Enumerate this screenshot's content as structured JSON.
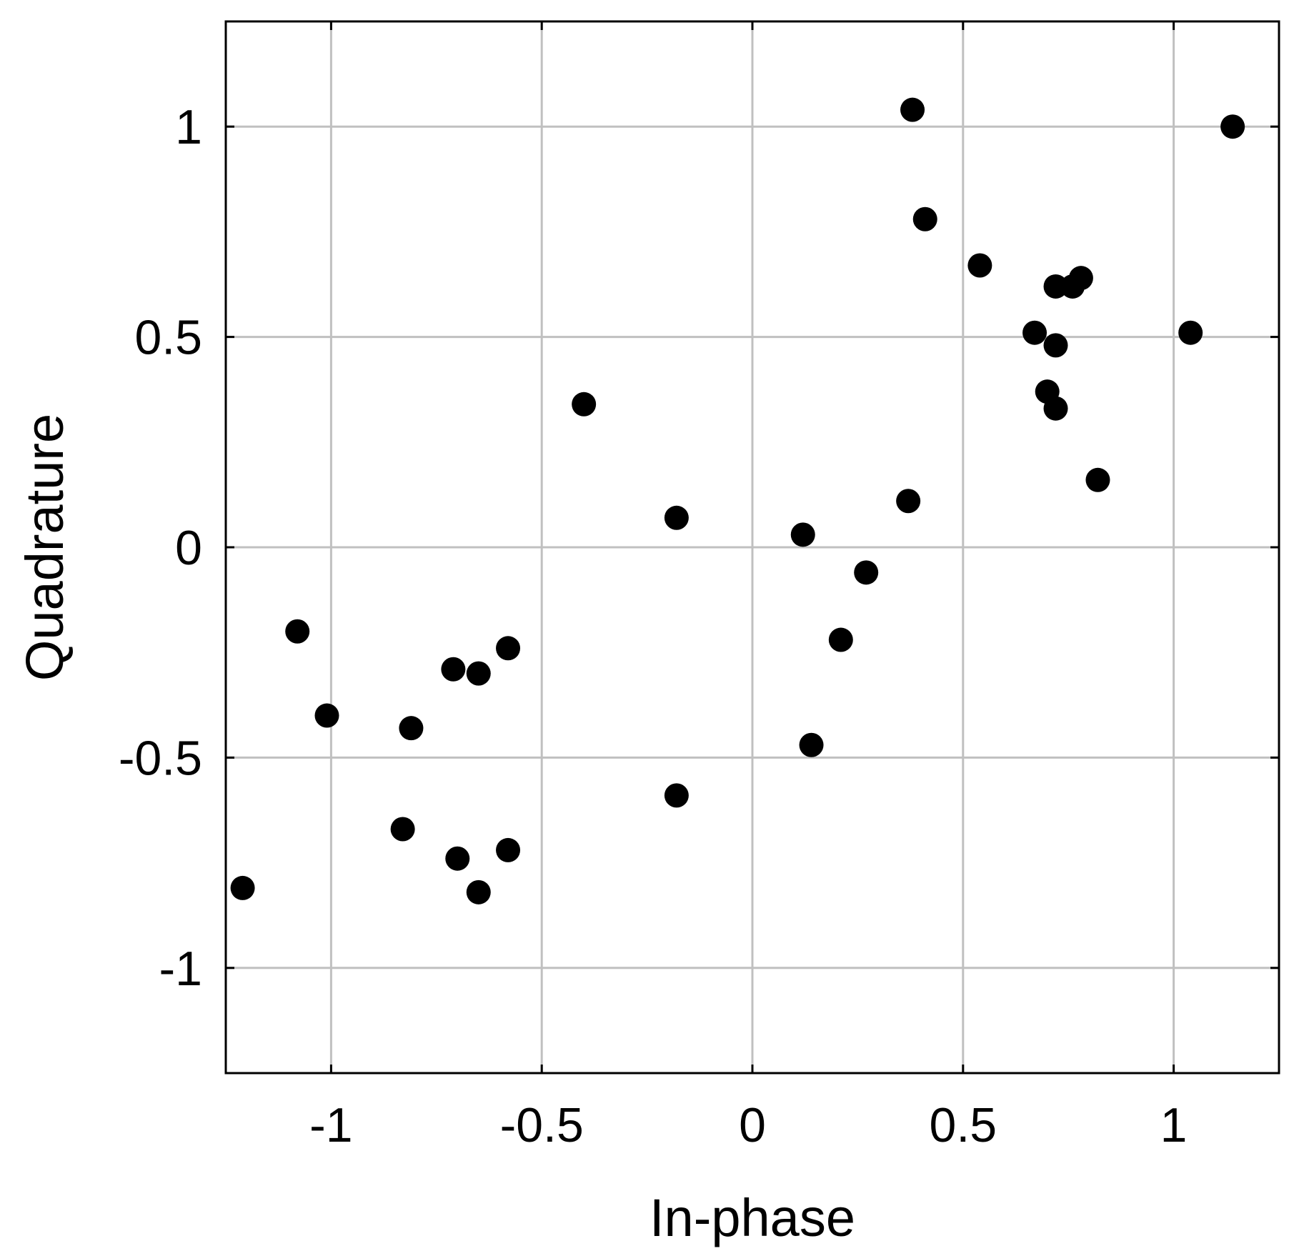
{
  "chart_data": {
    "type": "scatter",
    "title": "",
    "xlabel": "In-phase",
    "ylabel": "Quadrature",
    "xlim": [
      -1.25,
      1.25
    ],
    "ylim": [
      -1.25,
      1.25
    ],
    "xticks": [
      -1,
      -0.5,
      0,
      0.5,
      1
    ],
    "yticks": [
      -1,
      -0.5,
      0,
      0.5,
      1
    ],
    "xtick_labels": [
      "-1",
      "-0.5",
      "0",
      "0.5",
      "1"
    ],
    "ytick_labels": [
      "-1",
      "-0.5",
      "0",
      "0.5",
      "1"
    ],
    "grid": true,
    "marker_color": "#000000",
    "grid_color": "#c0c0c0",
    "series": [
      {
        "points": [
          [
            0.38,
            1.04
          ],
          [
            1.14,
            1.0
          ],
          [
            0.41,
            0.78
          ],
          [
            0.54,
            0.67
          ],
          [
            0.72,
            0.62
          ],
          [
            0.76,
            0.62
          ],
          [
            0.78,
            0.64
          ],
          [
            0.67,
            0.51
          ],
          [
            0.72,
            0.48
          ],
          [
            1.04,
            0.51
          ],
          [
            0.7,
            0.37
          ],
          [
            0.72,
            0.33
          ],
          [
            0.82,
            0.16
          ],
          [
            -0.4,
            0.34
          ],
          [
            -0.18,
            0.07
          ],
          [
            0.12,
            0.03
          ],
          [
            0.37,
            0.11
          ],
          [
            0.27,
            -0.06
          ],
          [
            0.21,
            -0.22
          ],
          [
            0.14,
            -0.47
          ],
          [
            -1.08,
            -0.2
          ],
          [
            -0.58,
            -0.24
          ],
          [
            -0.71,
            -0.29
          ],
          [
            -0.65,
            -0.3
          ],
          [
            -1.01,
            -0.4
          ],
          [
            -0.81,
            -0.43
          ],
          [
            -0.18,
            -0.59
          ],
          [
            -0.83,
            -0.67
          ],
          [
            -0.7,
            -0.74
          ],
          [
            -0.58,
            -0.72
          ],
          [
            -0.65,
            -0.82
          ],
          [
            -1.21,
            -0.81
          ]
        ]
      }
    ]
  }
}
